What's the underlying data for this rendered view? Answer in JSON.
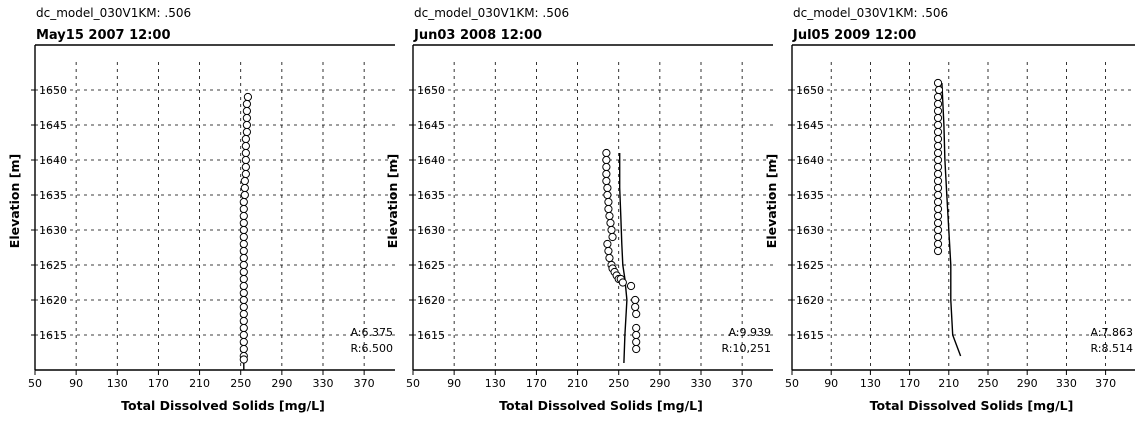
{
  "chart_data": [
    {
      "type": "scatter",
      "subtitle": "dc_model_030V1KM: .506",
      "title": "May15 2007 12:00",
      "xlabel": "Total Dissolved Solids [mg/L]",
      "ylabel": "Elevation [m]",
      "xlim": [
        50,
        400
      ],
      "ylim": [
        1610,
        1654
      ],
      "xticks": [
        50,
        90,
        130,
        170,
        210,
        250,
        290,
        330,
        370
      ],
      "yticks": [
        1615,
        1620,
        1625,
        1630,
        1635,
        1640,
        1645,
        1650
      ],
      "grid": true,
      "stats": {
        "a": "A:6.375",
        "r": "R:6.500"
      },
      "observed": {
        "x": [
          257,
          256,
          256,
          256,
          256,
          256,
          255,
          255,
          255,
          255,
          255,
          255,
          254,
          254,
          254,
          253,
          253,
          253,
          253,
          253,
          253,
          253,
          253,
          253,
          253,
          253,
          253,
          253,
          253,
          253,
          253,
          253,
          253,
          253,
          253,
          253,
          253,
          253,
          253
        ],
        "y": [
          1649,
          1648,
          1647,
          1646,
          1645,
          1644,
          1643,
          1642,
          1641,
          1640,
          1639,
          1638,
          1637,
          1636,
          1635,
          1634,
          1633,
          1632,
          1631,
          1630,
          1629,
          1628,
          1627,
          1626,
          1625,
          1624,
          1623,
          1622,
          1621,
          1620,
          1619,
          1618,
          1617,
          1616,
          1615,
          1614,
          1613,
          1612,
          1611.5
        ]
      },
      "model": {
        "x": [
          253,
          253,
          253,
          254,
          255,
          256,
          257
        ],
        "y": [
          1610,
          1620,
          1630,
          1636,
          1641,
          1646,
          1649
        ]
      }
    },
    {
      "type": "scatter",
      "subtitle": "dc_model_030V1KM: .506",
      "title": "Jun03 2008 12:00",
      "xlabel": "Total Dissolved Solids [mg/L]",
      "ylabel": "Elevation [m]",
      "xlim": [
        50,
        400
      ],
      "ylim": [
        1610,
        1654
      ],
      "xticks": [
        50,
        90,
        130,
        170,
        210,
        250,
        290,
        330,
        370
      ],
      "yticks": [
        1615,
        1620,
        1625,
        1630,
        1635,
        1640,
        1645,
        1650
      ],
      "grid": true,
      "stats": {
        "a": "A:9.939",
        "r": "R:10,251"
      },
      "observed": {
        "x": [
          238,
          238,
          238,
          238,
          238,
          239,
          239,
          240,
          240,
          241,
          242,
          243,
          244,
          239,
          240,
          241,
          243,
          244,
          246,
          248,
          250,
          252,
          254,
          262,
          266,
          266,
          267,
          267,
          267,
          267,
          267
        ],
        "y": [
          1641,
          1640,
          1639,
          1638,
          1637,
          1636,
          1635,
          1634,
          1633,
          1632,
          1631,
          1630,
          1629,
          1628,
          1627,
          1626,
          1625,
          1624.5,
          1624,
          1623.5,
          1623,
          1623,
          1622.5,
          1622,
          1620,
          1619,
          1618,
          1616,
          1615,
          1614,
          1613
        ]
      },
      "model": {
        "x": [
          251,
          251,
          252,
          253,
          254,
          256,
          258,
          256,
          255
        ],
        "y": [
          1641,
          1636,
          1632,
          1628,
          1625,
          1623,
          1620,
          1615,
          1611
        ]
      }
    },
    {
      "type": "scatter",
      "subtitle": "dc_model_030V1KM: .506",
      "title": "Jul05 2009 12:00",
      "xlabel": "Total Dissolved Solids [mg/L]",
      "ylabel": "Elevation [m]",
      "xlim": [
        50,
        400
      ],
      "ylim": [
        1610,
        1654
      ],
      "xticks": [
        50,
        90,
        130,
        170,
        210,
        250,
        290,
        330,
        370
      ],
      "yticks": [
        1615,
        1620,
        1625,
        1630,
        1635,
        1640,
        1645,
        1650
      ],
      "grid": true,
      "stats": {
        "a": "A:7.863",
        "r": "R:8.514"
      },
      "observed": {
        "x": [
          199,
          200,
          199,
          199,
          199,
          199,
          199,
          199,
          199,
          199,
          199,
          199,
          199,
          199,
          199,
          199,
          199,
          199,
          199,
          199,
          199,
          199,
          199,
          199,
          199
        ],
        "y": [
          1651,
          1650,
          1649,
          1648,
          1647,
          1646,
          1645,
          1644,
          1643,
          1642,
          1641,
          1640,
          1639,
          1638,
          1637,
          1636,
          1635,
          1634,
          1633,
          1632,
          1631,
          1630,
          1629,
          1628,
          1627
        ]
      },
      "model": {
        "x": [
          203,
          205,
          206,
          208,
          210,
          212,
          212,
          214,
          222
        ],
        "y": [
          1651,
          1645,
          1640,
          1635,
          1630,
          1625,
          1620,
          1615,
          1612
        ]
      }
    }
  ]
}
